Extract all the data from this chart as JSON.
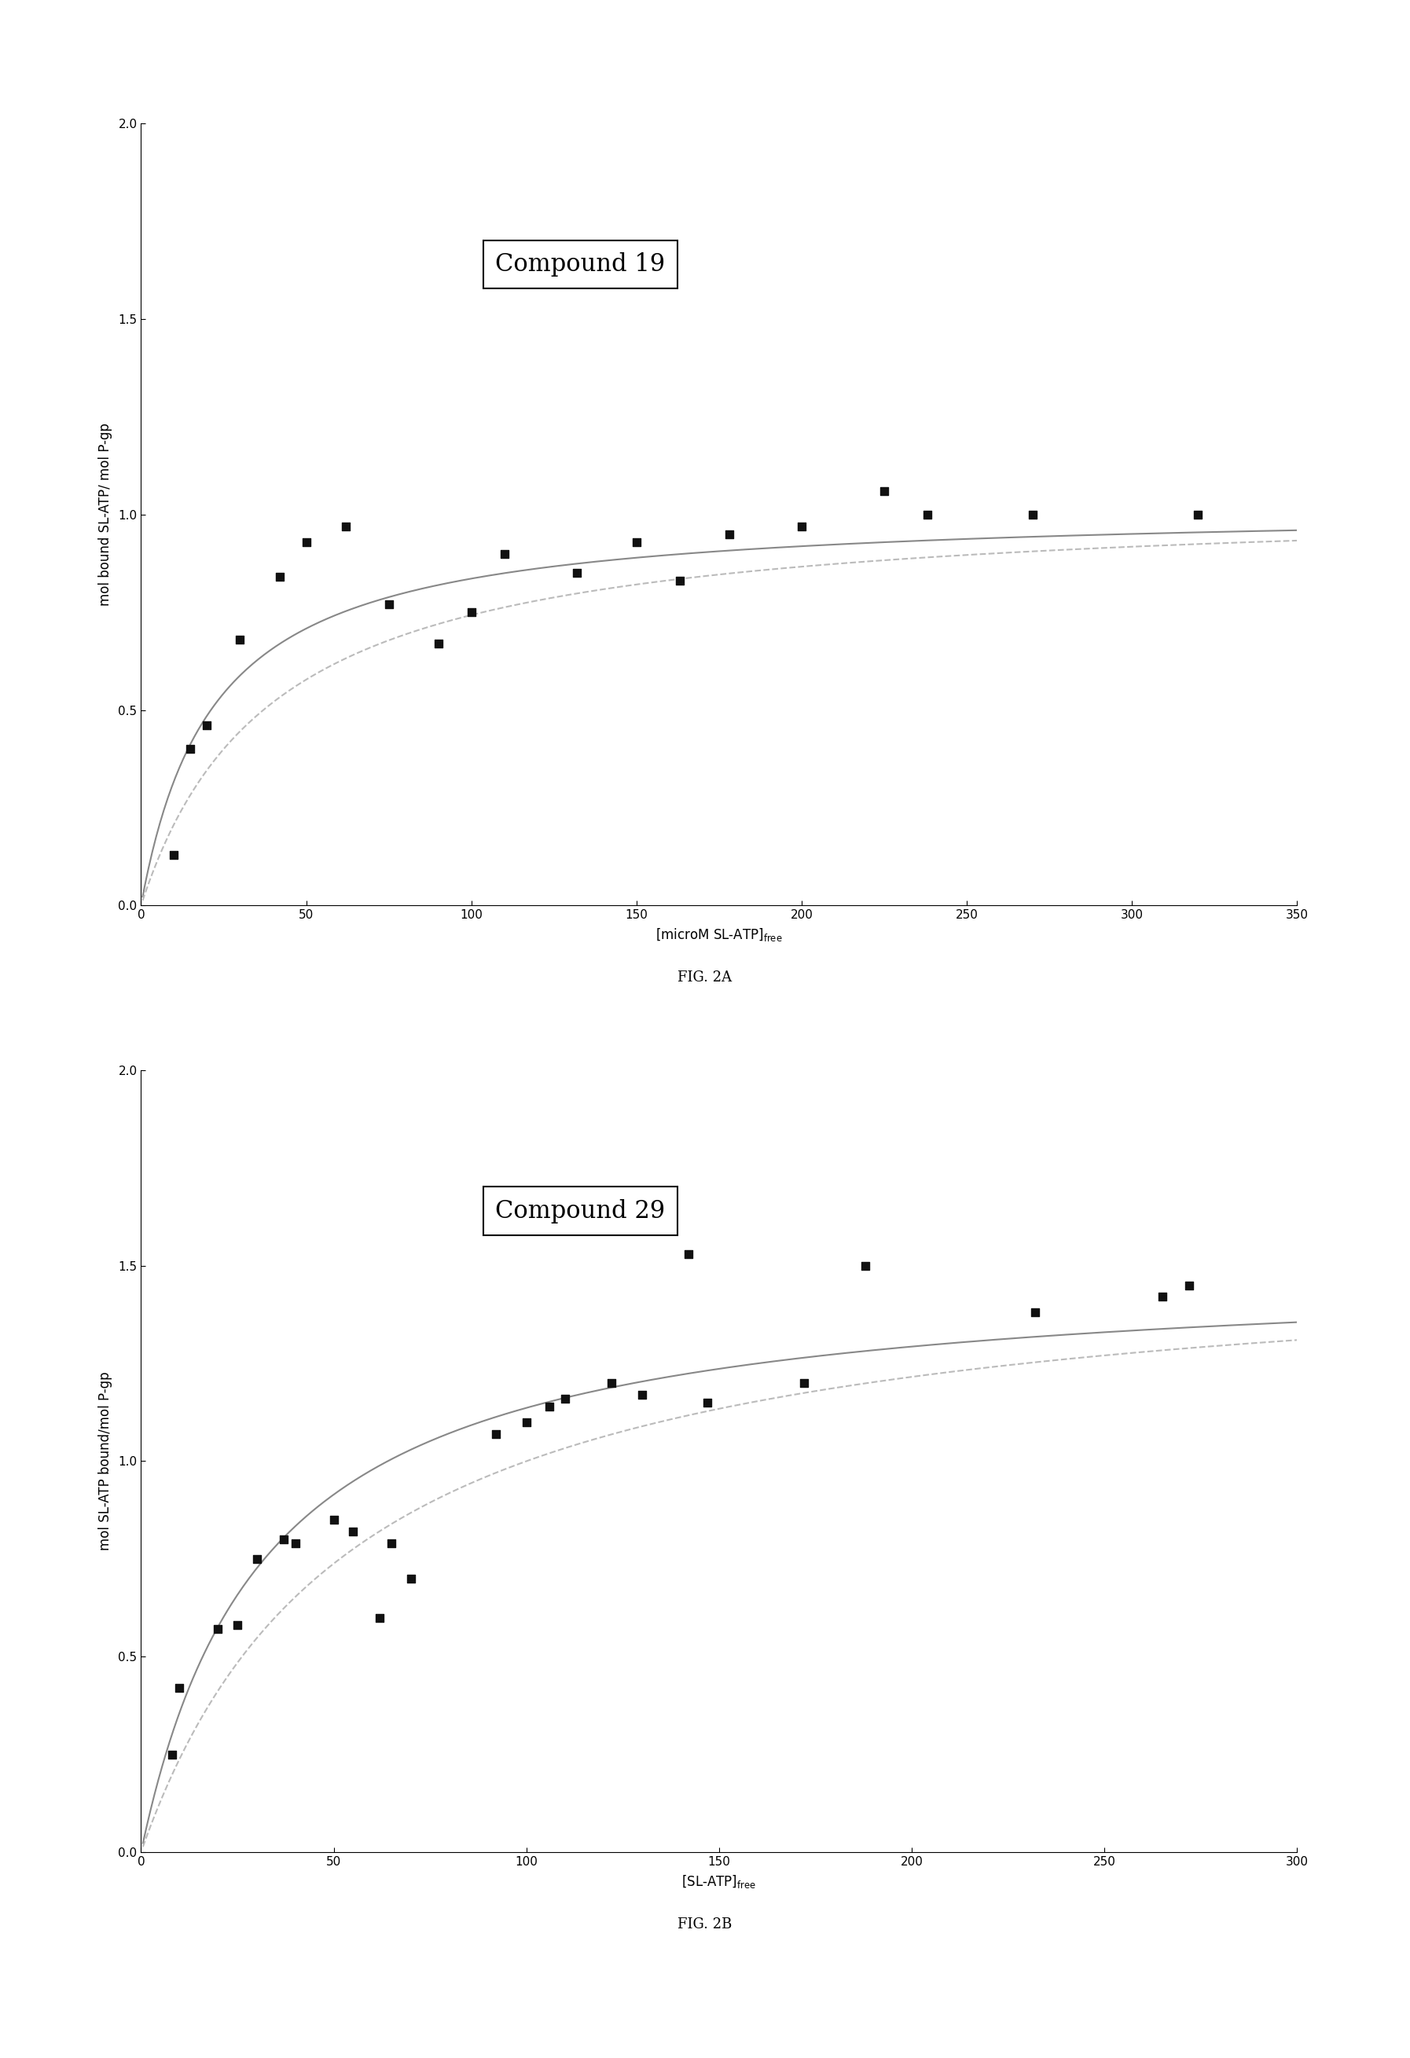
{
  "fig2a": {
    "title": "Compound 19",
    "xlabel": "[microM SL-ATP]",
    "ylabel": "mol bound SL-ATP/ mol P-gp",
    "xlim": [
      0,
      350
    ],
    "ylim": [
      0.0,
      2.0
    ],
    "xticks": [
      0,
      50,
      100,
      150,
      200,
      250,
      300,
      350
    ],
    "yticks": [
      0.0,
      0.5,
      1.0,
      1.5,
      2.0
    ],
    "scatter_x": [
      10,
      15,
      20,
      30,
      42,
      50,
      62,
      75,
      90,
      100,
      110,
      132,
      150,
      163,
      178,
      200,
      225,
      238,
      270,
      320
    ],
    "scatter_y": [
      0.13,
      0.4,
      0.46,
      0.68,
      0.84,
      0.93,
      0.97,
      0.77,
      0.67,
      0.75,
      0.9,
      0.85,
      0.93,
      0.83,
      0.95,
      0.97,
      1.06,
      1.0,
      1.0,
      1.0
    ],
    "Bmax1": 1.02,
    "Kd1": 22.0,
    "Bmax2": 1.04,
    "Kd2": 40.0,
    "fig_label": "FIG. 2A"
  },
  "fig2b": {
    "title": "Compound 29",
    "xlabel": "[SL-ATP]",
    "ylabel": "mol SL-ATP bound/mol P-gp",
    "xlim": [
      0,
      300
    ],
    "ylim": [
      0.0,
      2.0
    ],
    "xticks": [
      0,
      50,
      100,
      150,
      200,
      250,
      300
    ],
    "yticks": [
      0.0,
      0.5,
      1.0,
      1.5,
      2.0
    ],
    "scatter_x": [
      8,
      10,
      20,
      25,
      30,
      37,
      40,
      50,
      55,
      62,
      65,
      70,
      92,
      100,
      106,
      110,
      122,
      130,
      142,
      147,
      172,
      188,
      232,
      265,
      272
    ],
    "scatter_y": [
      0.25,
      0.42,
      0.57,
      0.58,
      0.75,
      0.8,
      0.79,
      0.85,
      0.82,
      0.6,
      0.79,
      0.7,
      1.07,
      1.1,
      1.14,
      1.16,
      1.2,
      1.17,
      1.53,
      1.15,
      1.2,
      1.5,
      1.38,
      1.42,
      1.45
    ],
    "Bmax1": 1.5,
    "Kd1": 32.0,
    "Bmax2": 1.55,
    "Kd2": 55.0,
    "fig_label": "FIG. 2B"
  },
  "scatter_color": "#111111",
  "curve1_color": "#888888",
  "curve2_color": "#bbbbbb",
  "background_color": "#ffffff",
  "title_fontsize": 22,
  "label_fontsize": 12,
  "tick_fontsize": 11,
  "figlabel_fontsize": 13
}
